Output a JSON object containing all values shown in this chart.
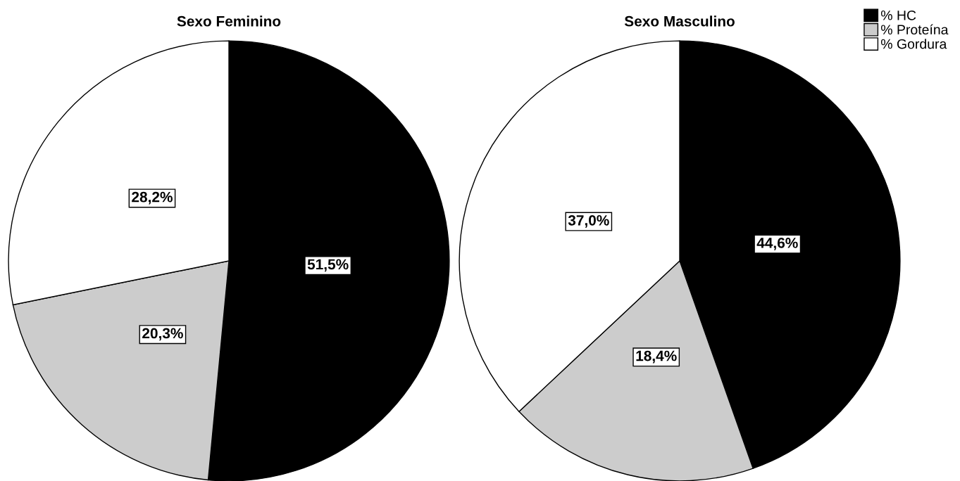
{
  "chart_data": [
    {
      "type": "pie",
      "title": "Sexo Feminino",
      "categories": [
        "% HC",
        "% Proteína",
        "% Gordura"
      ],
      "values": [
        51.5,
        20.3,
        28.2
      ],
      "colors": [
        "#000000",
        "#cccccc",
        "#ffffff"
      ],
      "value_labels": [
        "51,5%",
        "20,3%",
        "28,2%"
      ],
      "legend": "top right"
    },
    {
      "type": "pie",
      "title": "Sexo Masculino",
      "categories": [
        null,
        null,
        null
      ],
      "values": [
        44.6,
        18.4,
        37.0
      ],
      "colors": [
        "#000000",
        "#cccccc",
        "#ffffff"
      ],
      "value_labels": [
        "44,6%",
        "18,4%",
        "37,0%"
      ]
    }
  ]
}
